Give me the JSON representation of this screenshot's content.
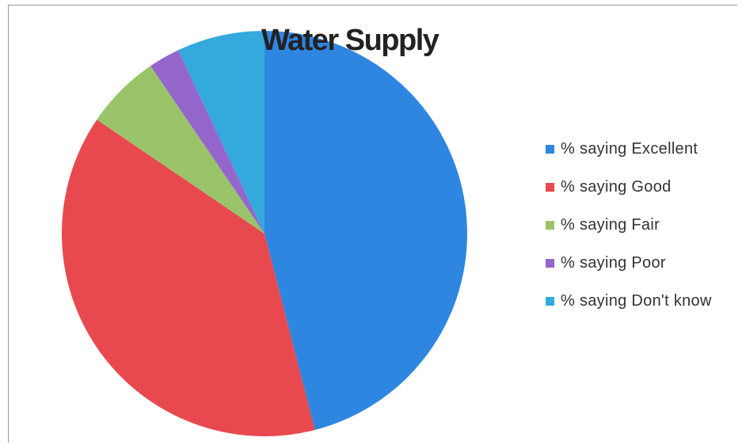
{
  "chart_data": {
    "type": "pie",
    "title": "Water Supply",
    "legend_position": "right",
    "categories": [
      "% saying Excellent",
      "% saying Good",
      "% saying Fair",
      "% saying Poor",
      "% saying Don't know"
    ],
    "values": [
      46,
      38.5,
      6,
      2.5,
      7
    ],
    "colors": [
      "#2f86e0",
      "#e8494f",
      "#99c46a",
      "#9466cc",
      "#33a9dd"
    ]
  }
}
